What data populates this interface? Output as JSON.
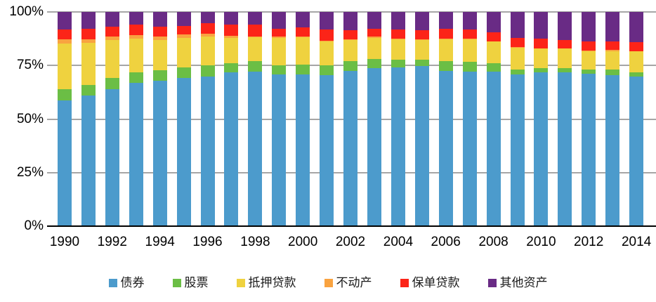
{
  "chart_data": {
    "type": "bar",
    "stacked": true,
    "normalized": "percent",
    "title": "",
    "xlabel": "",
    "ylabel": "",
    "categories": [
      1990,
      1991,
      1992,
      1993,
      1994,
      1995,
      1996,
      1997,
      1998,
      1999,
      2000,
      2001,
      2002,
      2003,
      2004,
      2005,
      2006,
      2007,
      2008,
      2009,
      2010,
      2011,
      2012,
      2013,
      2014
    ],
    "series": [
      {
        "name": "债券",
        "key": "bonds",
        "color": "#4C9BCC",
        "values": [
          58.8,
          61.0,
          63.8,
          66.8,
          68.0,
          69.3,
          70.0,
          71.9,
          72.3,
          70.8,
          70.8,
          70.4,
          72.6,
          73.9,
          74.0,
          74.8,
          72.4,
          72.0,
          72.3,
          70.8,
          71.8,
          71.9,
          71.0,
          70.4,
          70.0
        ]
      },
      {
        "name": "股票",
        "key": "stocks",
        "color": "#6BBE45",
        "values": [
          5.0,
          5.0,
          5.3,
          5.0,
          4.8,
          4.7,
          5.2,
          4.1,
          4.6,
          4.4,
          4.6,
          4.8,
          4.4,
          4.2,
          3.7,
          2.9,
          4.7,
          4.6,
          3.8,
          2.2,
          1.9,
          2.0,
          2.1,
          2.7,
          1.9
        ]
      },
      {
        "name": "抵押贷款",
        "key": "mortgage-loans",
        "color": "#EFD23F",
        "values": [
          21.6,
          19.6,
          17.7,
          15.8,
          14.0,
          13.8,
          13.2,
          11.9,
          11.2,
          12.8,
          12.8,
          11.0,
          10.0,
          9.9,
          9.4,
          9.3,
          10.2,
          10.5,
          10.1,
          10.2,
          9.2,
          8.9,
          8.4,
          8.5,
          9.6
        ]
      },
      {
        "name": "不动产",
        "key": "real-estate",
        "color": "#F9A340",
        "values": [
          1.7,
          1.7,
          1.6,
          1.7,
          1.9,
          1.6,
          1.4,
          0.8,
          0.5,
          0.4,
          0.5,
          0.5,
          0.3,
          0.4,
          0.3,
          0.3,
          0.3,
          0.3,
          0.2,
          0.3,
          0.2,
          0.2,
          0.6,
          0.6,
          0.3
        ]
      },
      {
        "name": "保单贷款",
        "key": "policy-loans",
        "color": "#FC2418",
        "values": [
          4.8,
          4.7,
          4.6,
          4.7,
          4.4,
          4.0,
          5.0,
          5.4,
          5.4,
          3.9,
          4.1,
          5.0,
          4.1,
          3.6,
          4.3,
          4.3,
          4.4,
          4.3,
          4.0,
          4.4,
          4.3,
          4.0,
          4.1,
          4.0,
          4.1
        ]
      },
      {
        "name": "其他资产",
        "key": "other-assets",
        "color": "#692B85",
        "values": [
          8.1,
          8.0,
          7.0,
          6.0,
          6.9,
          6.6,
          5.2,
          5.9,
          6.0,
          7.7,
          7.2,
          8.3,
          8.6,
          8.0,
          8.3,
          8.4,
          8.0,
          8.3,
          9.6,
          12.1,
          12.6,
          13.0,
          13.8,
          13.8,
          14.1
        ]
      }
    ],
    "y_axis": {
      "ticks": [
        "100%",
        "75%",
        "50%",
        "25%",
        "0%"
      ],
      "tick_values": [
        100,
        75,
        50,
        25,
        0
      ],
      "range": [
        0,
        100
      ]
    },
    "x_axis": {
      "tick_labels": [
        "1990",
        "1992",
        "1994",
        "1996",
        "1998",
        "2000",
        "2002",
        "2004",
        "2006",
        "2008",
        "2010",
        "2012",
        "2014"
      ],
      "label_every": 2
    },
    "legend": {
      "position": "bottom"
    },
    "grid": true,
    "gridline_color": "#A6A6A6",
    "axis_line_color": "#000000"
  }
}
